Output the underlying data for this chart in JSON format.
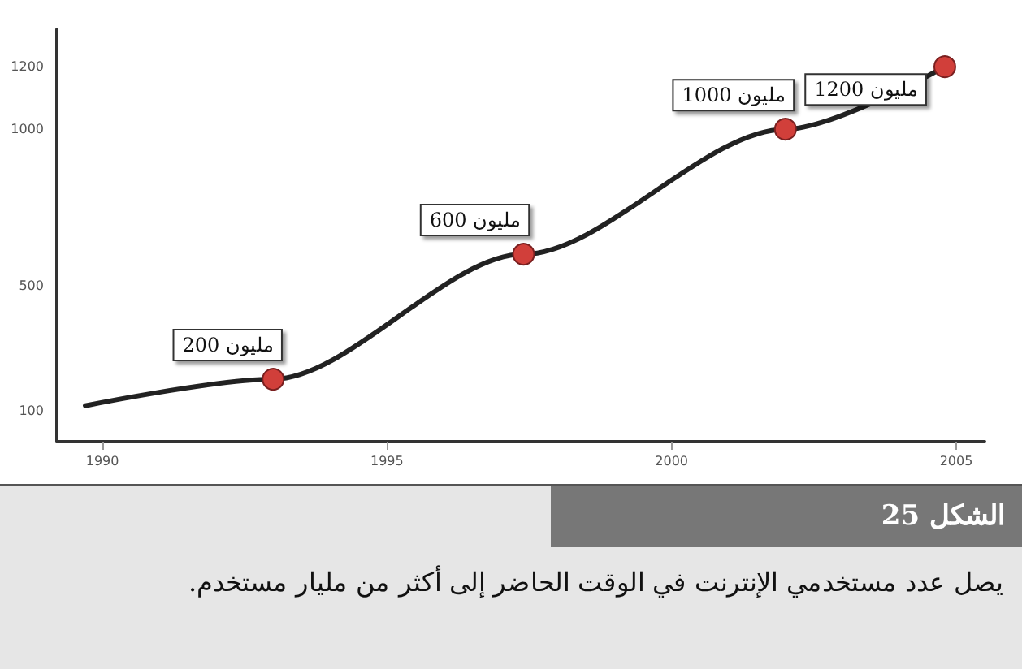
{
  "chart_data": {
    "type": "line",
    "title": "الشكل 25",
    "annotations": [
      "يصل عدد مستخدمي الإنترنت في الوقت الحاضر إلى أكثر من مليار مستخدم."
    ],
    "x": [
      1989.7,
      1993,
      1997.4,
      2002,
      2004.8
    ],
    "series": [
      {
        "color": "#222222",
        "values": [
          115,
          200,
          600,
          1000,
          1200
        ],
        "value_labels": [
          null,
          "200 مليون",
          "600 مليون",
          "1000 مليون",
          "1200 مليون"
        ]
      }
    ],
    "marker": "circle",
    "line_style": "solid",
    "grid": false,
    "xlim": [
      1989.2,
      2005.5
    ],
    "xticks": [
      1990,
      1995,
      2000,
      2005
    ],
    "ylim": [
      0,
      1320
    ],
    "yticks": [
      100,
      500,
      1000,
      1200
    ]
  }
}
